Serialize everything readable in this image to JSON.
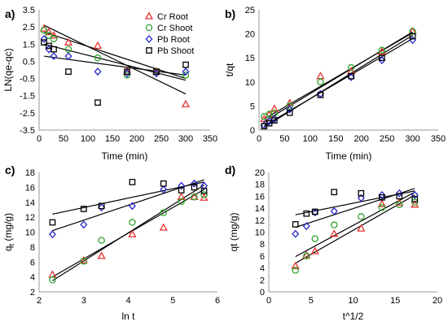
{
  "colors": {
    "cr_root": "#e8312f",
    "cr_shoot": "#31a52f",
    "pb_root": "#2727c9",
    "pb_shoot": "#000000",
    "fit": "#000000"
  },
  "chart_data": [
    {
      "id": "a",
      "panel_label": "a)",
      "type": "scatter",
      "xlabel": "Time (min)",
      "ylabel": "LN(qe-qc)",
      "xlim": [
        0,
        350
      ],
      "ylim": [
        -3.5,
        3.5
      ],
      "xticks": [
        0,
        50,
        100,
        150,
        200,
        250,
        300,
        350
      ],
      "yticks": [
        -3.5,
        -2.5,
        -1.5,
        -0.5,
        0.5,
        1.5,
        2.5,
        3.5
      ],
      "ytick_labels": [
        "-3.5",
        "-2.5",
        "-1.5",
        "-0.5",
        "0.5",
        "1.5",
        "2.5",
        "3.5"
      ],
      "legend": {
        "position": "top-right",
        "entries": [
          "Cr Root",
          "Cr Shoot",
          "Pb Root",
          "Pb Shoot"
        ]
      },
      "series": [
        {
          "name": "Cr Root",
          "marker": "triangle",
          "color_key": "cr_root",
          "x": [
            10,
            20,
            30,
            60,
            120,
            180,
            240,
            300
          ],
          "y": [
            2.4,
            2.2,
            2.0,
            1.6,
            1.4,
            -0.1,
            -0.1,
            -2.0
          ],
          "fit": {
            "x": [
              10,
              300
            ],
            "y": [
              2.6,
              -1.4
            ]
          }
        },
        {
          "name": "Cr Shoot",
          "marker": "circle",
          "color_key": "cr_shoot",
          "x": [
            10,
            20,
            30,
            60,
            120,
            180,
            240,
            300
          ],
          "y": [
            2.3,
            2.0,
            1.8,
            1.2,
            0.7,
            -0.3,
            -0.1,
            -0.3
          ],
          "fit": {
            "x": [
              10,
              300
            ],
            "y": [
              2.2,
              -0.5
            ]
          }
        },
        {
          "name": "Pb Root",
          "marker": "diamond",
          "color_key": "pb_root",
          "x": [
            10,
            20,
            30,
            60,
            120,
            180,
            240,
            300
          ],
          "y": [
            1.8,
            1.2,
            0.8,
            0.8,
            -0.1,
            -0.2,
            -0.2,
            -0.1
          ],
          "fit": {
            "x": [
              10,
              300
            ],
            "y": [
              1.5,
              -0.6
            ]
          }
        },
        {
          "name": "Pb Shoot",
          "marker": "square",
          "color_key": "pb_shoot",
          "x": [
            10,
            20,
            30,
            60,
            120,
            180,
            240,
            300
          ],
          "y": [
            1.6,
            1.4,
            1.2,
            -0.1,
            -1.9,
            -0.1,
            -0.1,
            0.3
          ],
          "fit": {
            "x": [
              10,
              300
            ],
            "y": [
              0.8,
              -0.3
            ]
          }
        }
      ]
    },
    {
      "id": "b",
      "panel_label": "b)",
      "type": "scatter",
      "xlabel": "Time (min)",
      "ylabel": "t/qt",
      "xlim": [
        0,
        350
      ],
      "ylim": [
        0,
        25
      ],
      "xticks": [
        0,
        50,
        100,
        150,
        200,
        250,
        300,
        350
      ],
      "yticks": [
        0,
        5,
        10,
        15,
        20,
        25
      ],
      "series": [
        {
          "name": "Cr Root",
          "marker": "triangle",
          "color_key": "cr_root",
          "x": [
            10,
            20,
            30,
            60,
            120,
            180,
            240,
            300
          ],
          "y": [
            2.3,
            3.2,
            4.4,
            5.6,
            11.2,
            12.2,
            16.3,
            20.5
          ],
          "fit": {
            "x": [
              10,
              300
            ],
            "y": [
              1.8,
              20.4
            ]
          }
        },
        {
          "name": "Cr Shoot",
          "marker": "circle",
          "color_key": "cr_shoot",
          "x": [
            10,
            20,
            30,
            60,
            120,
            180,
            240,
            300
          ],
          "y": [
            2.8,
            3.3,
            3.5,
            5.0,
            10.0,
            13.0,
            16.6,
            20.5
          ],
          "fit": {
            "x": [
              10,
              300
            ],
            "y": [
              2.3,
              20.2
            ]
          }
        },
        {
          "name": "Pb Root",
          "marker": "diamond",
          "color_key": "pb_root",
          "x": [
            10,
            20,
            30,
            60,
            120,
            180,
            240,
            300
          ],
          "y": [
            1.0,
            1.8,
            2.3,
            4.3,
            7.5,
            11.0,
            14.5,
            18.7
          ],
          "fit": {
            "x": [
              10,
              300
            ],
            "y": [
              0.9,
              19.0
            ]
          }
        },
        {
          "name": "Pb Shoot",
          "marker": "square",
          "color_key": "pb_shoot",
          "x": [
            10,
            20,
            30,
            60,
            120,
            180,
            240,
            300
          ],
          "y": [
            0.8,
            1.4,
            2.0,
            3.6,
            7.3,
            11.2,
            15.0,
            19.5
          ],
          "fit": {
            "x": [
              10,
              300
            ],
            "y": [
              0.6,
              19.7
            ]
          }
        }
      ]
    },
    {
      "id": "c",
      "panel_label": "c)",
      "type": "scatter",
      "xlabel": "ln t",
      "ylabel": "q_t (mg/g)",
      "xlim": [
        2,
        6
      ],
      "ylim": [
        2,
        18
      ],
      "xticks": [
        2,
        3,
        4,
        5,
        6
      ],
      "yticks": [
        2,
        4,
        6,
        8,
        10,
        12,
        14,
        16,
        18
      ],
      "series": [
        {
          "name": "Cr Root",
          "marker": "triangle",
          "color_key": "cr_root",
          "x": [
            2.3,
            3.0,
            3.4,
            4.09,
            4.79,
            5.19,
            5.48,
            5.7
          ],
          "y": [
            4.3,
            6.2,
            6.8,
            9.7,
            10.6,
            14.7,
            14.7,
            14.6
          ],
          "fit": {
            "x": [
              2.3,
              5.7
            ],
            "y": [
              4.0,
              15.7
            ]
          }
        },
        {
          "name": "Cr Shoot",
          "marker": "circle",
          "color_key": "cr_shoot",
          "x": [
            2.3,
            3.0,
            3.4,
            4.09,
            4.79,
            5.19,
            5.48,
            5.7
          ],
          "y": [
            3.6,
            6.1,
            8.9,
            11.3,
            12.6,
            14.1,
            14.7,
            15.0
          ],
          "fit": {
            "x": [
              2.3,
              5.7
            ],
            "y": [
              3.5,
              16.3
            ]
          }
        },
        {
          "name": "Pb Root",
          "marker": "diamond",
          "color_key": "pb_root",
          "x": [
            2.3,
            3.0,
            3.4,
            4.09,
            4.79,
            5.19,
            5.48,
            5.7
          ],
          "y": [
            9.7,
            11.0,
            13.3,
            13.5,
            15.7,
            16.2,
            16.5,
            16.2
          ],
          "fit": {
            "x": [
              2.3,
              5.7
            ],
            "y": [
              10.2,
              17.0
            ]
          }
        },
        {
          "name": "Pb Shoot",
          "marker": "square",
          "color_key": "pb_shoot",
          "x": [
            2.3,
            3.0,
            3.4,
            4.09,
            4.79,
            5.19,
            5.48,
            5.7
          ],
          "y": [
            11.3,
            13.1,
            13.5,
            16.7,
            16.5,
            15.6,
            16.0,
            15.5
          ],
          "fit": {
            "x": [
              2.3,
              5.7
            ],
            "y": [
              12.4,
              16.7
            ]
          }
        }
      ]
    },
    {
      "id": "d",
      "panel_label": "d)",
      "type": "scatter",
      "xlabel": "t^1/2",
      "ylabel": "qt (mg/g)",
      "xlim": [
        0,
        20
      ],
      "ylim": [
        0,
        20
      ],
      "xticks": [
        0,
        5,
        10,
        15,
        20
      ],
      "yticks": [
        0,
        2,
        4,
        6,
        8,
        10,
        12,
        14,
        16,
        18,
        20
      ],
      "series": [
        {
          "name": "Cr Root",
          "marker": "triangle",
          "color_key": "cr_root",
          "x": [
            3.16,
            4.47,
            5.48,
            7.75,
            10.95,
            13.42,
            15.49,
            17.32
          ],
          "y": [
            4.3,
            6.1,
            6.8,
            9.7,
            10.6,
            14.7,
            14.9,
            14.6
          ],
          "fit": {
            "x": [
              3.16,
              17.32
            ],
            "y": [
              4.8,
              16.2
            ]
          }
        },
        {
          "name": "Cr Shoot",
          "marker": "circle",
          "color_key": "cr_shoot",
          "x": [
            3.16,
            4.47,
            5.48,
            7.75,
            10.95,
            13.42,
            15.49,
            17.32
          ],
          "y": [
            3.6,
            6.0,
            8.9,
            11.2,
            12.6,
            14.1,
            14.6,
            15.0
          ],
          "fit": {
            "x": [
              3.16,
              17.32
            ],
            "y": [
              5.9,
              16.7
            ]
          }
        },
        {
          "name": "Pb Root",
          "marker": "diamond",
          "color_key": "pb_root",
          "x": [
            3.16,
            4.47,
            5.48,
            7.75,
            10.95,
            13.42,
            15.49,
            17.32
          ],
          "y": [
            9.7,
            11.0,
            13.3,
            13.5,
            15.7,
            16.2,
            16.5,
            16.2
          ],
          "fit": {
            "x": [
              3.16,
              17.32
            ],
            "y": [
              10.8,
              17.3
            ]
          }
        },
        {
          "name": "Pb Shoot",
          "marker": "square",
          "color_key": "pb_shoot",
          "x": [
            3.16,
            4.47,
            5.48,
            7.75,
            10.95,
            13.42,
            15.49,
            17.32
          ],
          "y": [
            11.3,
            13.1,
            13.4,
            16.7,
            16.5,
            15.8,
            16.0,
            15.5
          ],
          "fit": {
            "x": [
              3.16,
              17.32
            ],
            "y": [
              12.9,
              16.9
            ]
          }
        }
      ]
    }
  ]
}
